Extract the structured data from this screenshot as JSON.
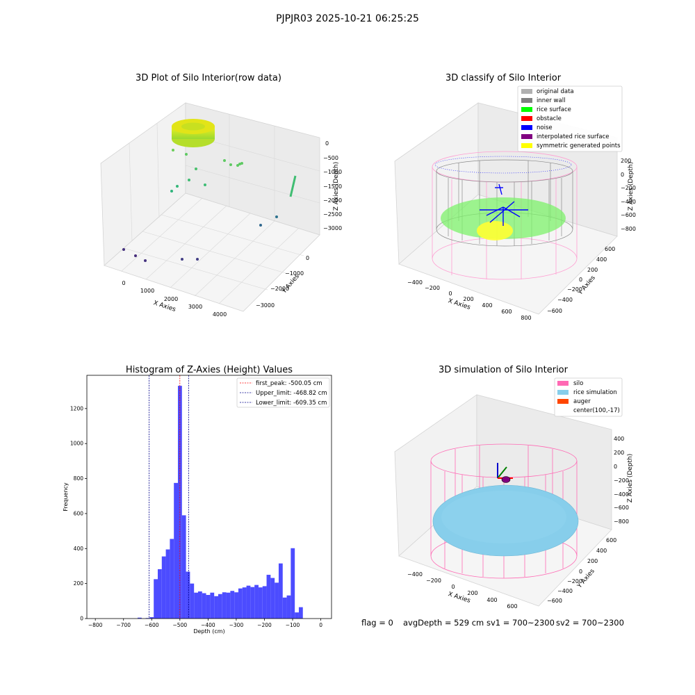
{
  "figure_title": "PJPJR03 2025-10-21 06:25:25",
  "footer": {
    "flag": "flag = 0",
    "avg_depth": "avgDepth = 529 cm",
    "sv1": "sv1 = 700~2300",
    "sv2": "sv2 = 700~2300"
  },
  "colors": {
    "histogram_bar": "#4c4cff",
    "first_peak": "#ff0000",
    "limits": "#00008b",
    "silo": "#ff69b4",
    "rice_simulation": "#87ceeb",
    "auger": "#ff4500"
  },
  "chart_data": [
    {
      "type": "scatter",
      "subtype": "3d",
      "title": "3D Plot of Silo Interior(row data)",
      "xlabel": "X Axies",
      "ylabel": "Y Axies",
      "zlabel": "Z Axies (Depth)",
      "x_ticks": [
        "0",
        "1000",
        "2000",
        "3000",
        "4000"
      ],
      "y_ticks": [
        "0",
        "−1000",
        "−2000",
        "−3000"
      ],
      "z_ticks": [
        "0",
        "−500",
        "−1000",
        "−1500",
        "−2000",
        "−2500",
        "−3000"
      ],
      "colormap": "viridis",
      "grid": true
    },
    {
      "type": "scatter",
      "subtype": "3d",
      "title": "3D classify of Silo Interior",
      "xlabel": "X Axies",
      "ylabel": "Y Axies",
      "zlabel": "Z Axies (Depth)",
      "x_ticks": [
        "−400",
        "−200",
        "0",
        "200",
        "400",
        "600",
        "800"
      ],
      "y_ticks": [
        "600",
        "400",
        "200",
        "0",
        "−200",
        "−400",
        "−600"
      ],
      "z_ticks": [
        "200",
        "0",
        "−200",
        "−400",
        "−600",
        "−800"
      ],
      "legend_position": "upper-right",
      "legend": [
        {
          "label": "original data",
          "color": "#b0b0b0"
        },
        {
          "label": "inner wall",
          "color": "#808080"
        },
        {
          "label": "rice surface",
          "color": "#00ff00"
        },
        {
          "label": "obstacle",
          "color": "#ff0000"
        },
        {
          "label": "noise",
          "color": "#0000ff"
        },
        {
          "label": "interpolated rice surface",
          "color": "#800080"
        },
        {
          "label": "symmetric generated points",
          "color": "#ffff00"
        }
      ],
      "grid": true
    },
    {
      "type": "bar",
      "subtype": "histogram",
      "title": "Histogram of Z-Axies (Height) Values",
      "xlabel": "Depth (cm)",
      "ylabel": "Frequency",
      "xlim": [
        -830,
        38
      ],
      "ylim": [
        0,
        1390
      ],
      "x_ticks": [
        -800,
        -700,
        -600,
        -500,
        -400,
        -300,
        -200,
        -100,
        0
      ],
      "y_ticks": [
        0,
        200,
        400,
        600,
        800,
        1000,
        1200
      ],
      "x_tick_labels": [
        "−800",
        "−700",
        "−600",
        "−500",
        "−400",
        "−300",
        "−200",
        "−100",
        "0"
      ],
      "y_tick_labels": [
        "0",
        "200",
        "400",
        "600",
        "800",
        "1000",
        "1200"
      ],
      "bin_width": 14.3,
      "bin_starts": [
        -650.0,
        -635.7,
        -621.4,
        -607.1,
        -592.8,
        -578.5,
        -564.2,
        -549.9,
        -535.6,
        -521.3,
        -507.0,
        -492.7,
        -478.4,
        -464.1,
        -449.8,
        -435.5,
        -421.2,
        -406.9,
        -392.6,
        -378.3,
        -364.0,
        -349.7,
        -335.4,
        -321.1,
        -306.8,
        -292.5,
        -278.2,
        -263.9,
        -249.6,
        -235.3,
        -221.0,
        -206.7,
        -192.4,
        -178.1,
        -163.8,
        -149.5,
        -135.2,
        -120.9,
        -106.6,
        -92.3,
        -78.0,
        -63.7,
        -49.4,
        -35.1,
        -20.8,
        -6.5
      ],
      "counts": [
        5,
        0,
        3,
        8,
        225,
        282,
        355,
        395,
        455,
        775,
        1330,
        590,
        268,
        200,
        148,
        155,
        145,
        135,
        148,
        128,
        140,
        150,
        148,
        158,
        150,
        172,
        178,
        188,
        180,
        192,
        178,
        185,
        250,
        232,
        205,
        315,
        120,
        132,
        402,
        35,
        65,
        0,
        0,
        0,
        0,
        0
      ],
      "vlines": [
        {
          "x": -500.05,
          "label": "first_peak: -500.05 cm",
          "color": "#ff0000"
        },
        {
          "x": -468.82,
          "label": "Upper_limit: -468.82 cm",
          "color": "#00008b"
        },
        {
          "x": -609.35,
          "label": "Lower_limit: -609.35 cm",
          "color": "#00008b"
        }
      ],
      "legend_position": "upper-right"
    },
    {
      "type": "scatter",
      "subtype": "3d",
      "title": "3D simulation of Silo Interior",
      "xlabel": "X Axies",
      "ylabel": "Y Axies",
      "zlabel": "Z Axies (Depth)",
      "x_ticks": [
        "−400",
        "−200",
        "0",
        "200",
        "400",
        "600"
      ],
      "y_ticks": [
        "600",
        "400",
        "200",
        "0",
        "−200",
        "−400",
        "−600"
      ],
      "z_ticks": [
        "400",
        "200",
        "0",
        "−200",
        "−400",
        "−600",
        "−800"
      ],
      "legend_position": "upper-right",
      "legend": [
        {
          "label": "silo",
          "color": "#ff69b4"
        },
        {
          "label": "rice simulation",
          "color": "#87ceeb"
        },
        {
          "label": "auger",
          "color": "#ff4500"
        },
        {
          "label": "center(100,-17)",
          "color": ""
        }
      ],
      "grid": true
    }
  ]
}
